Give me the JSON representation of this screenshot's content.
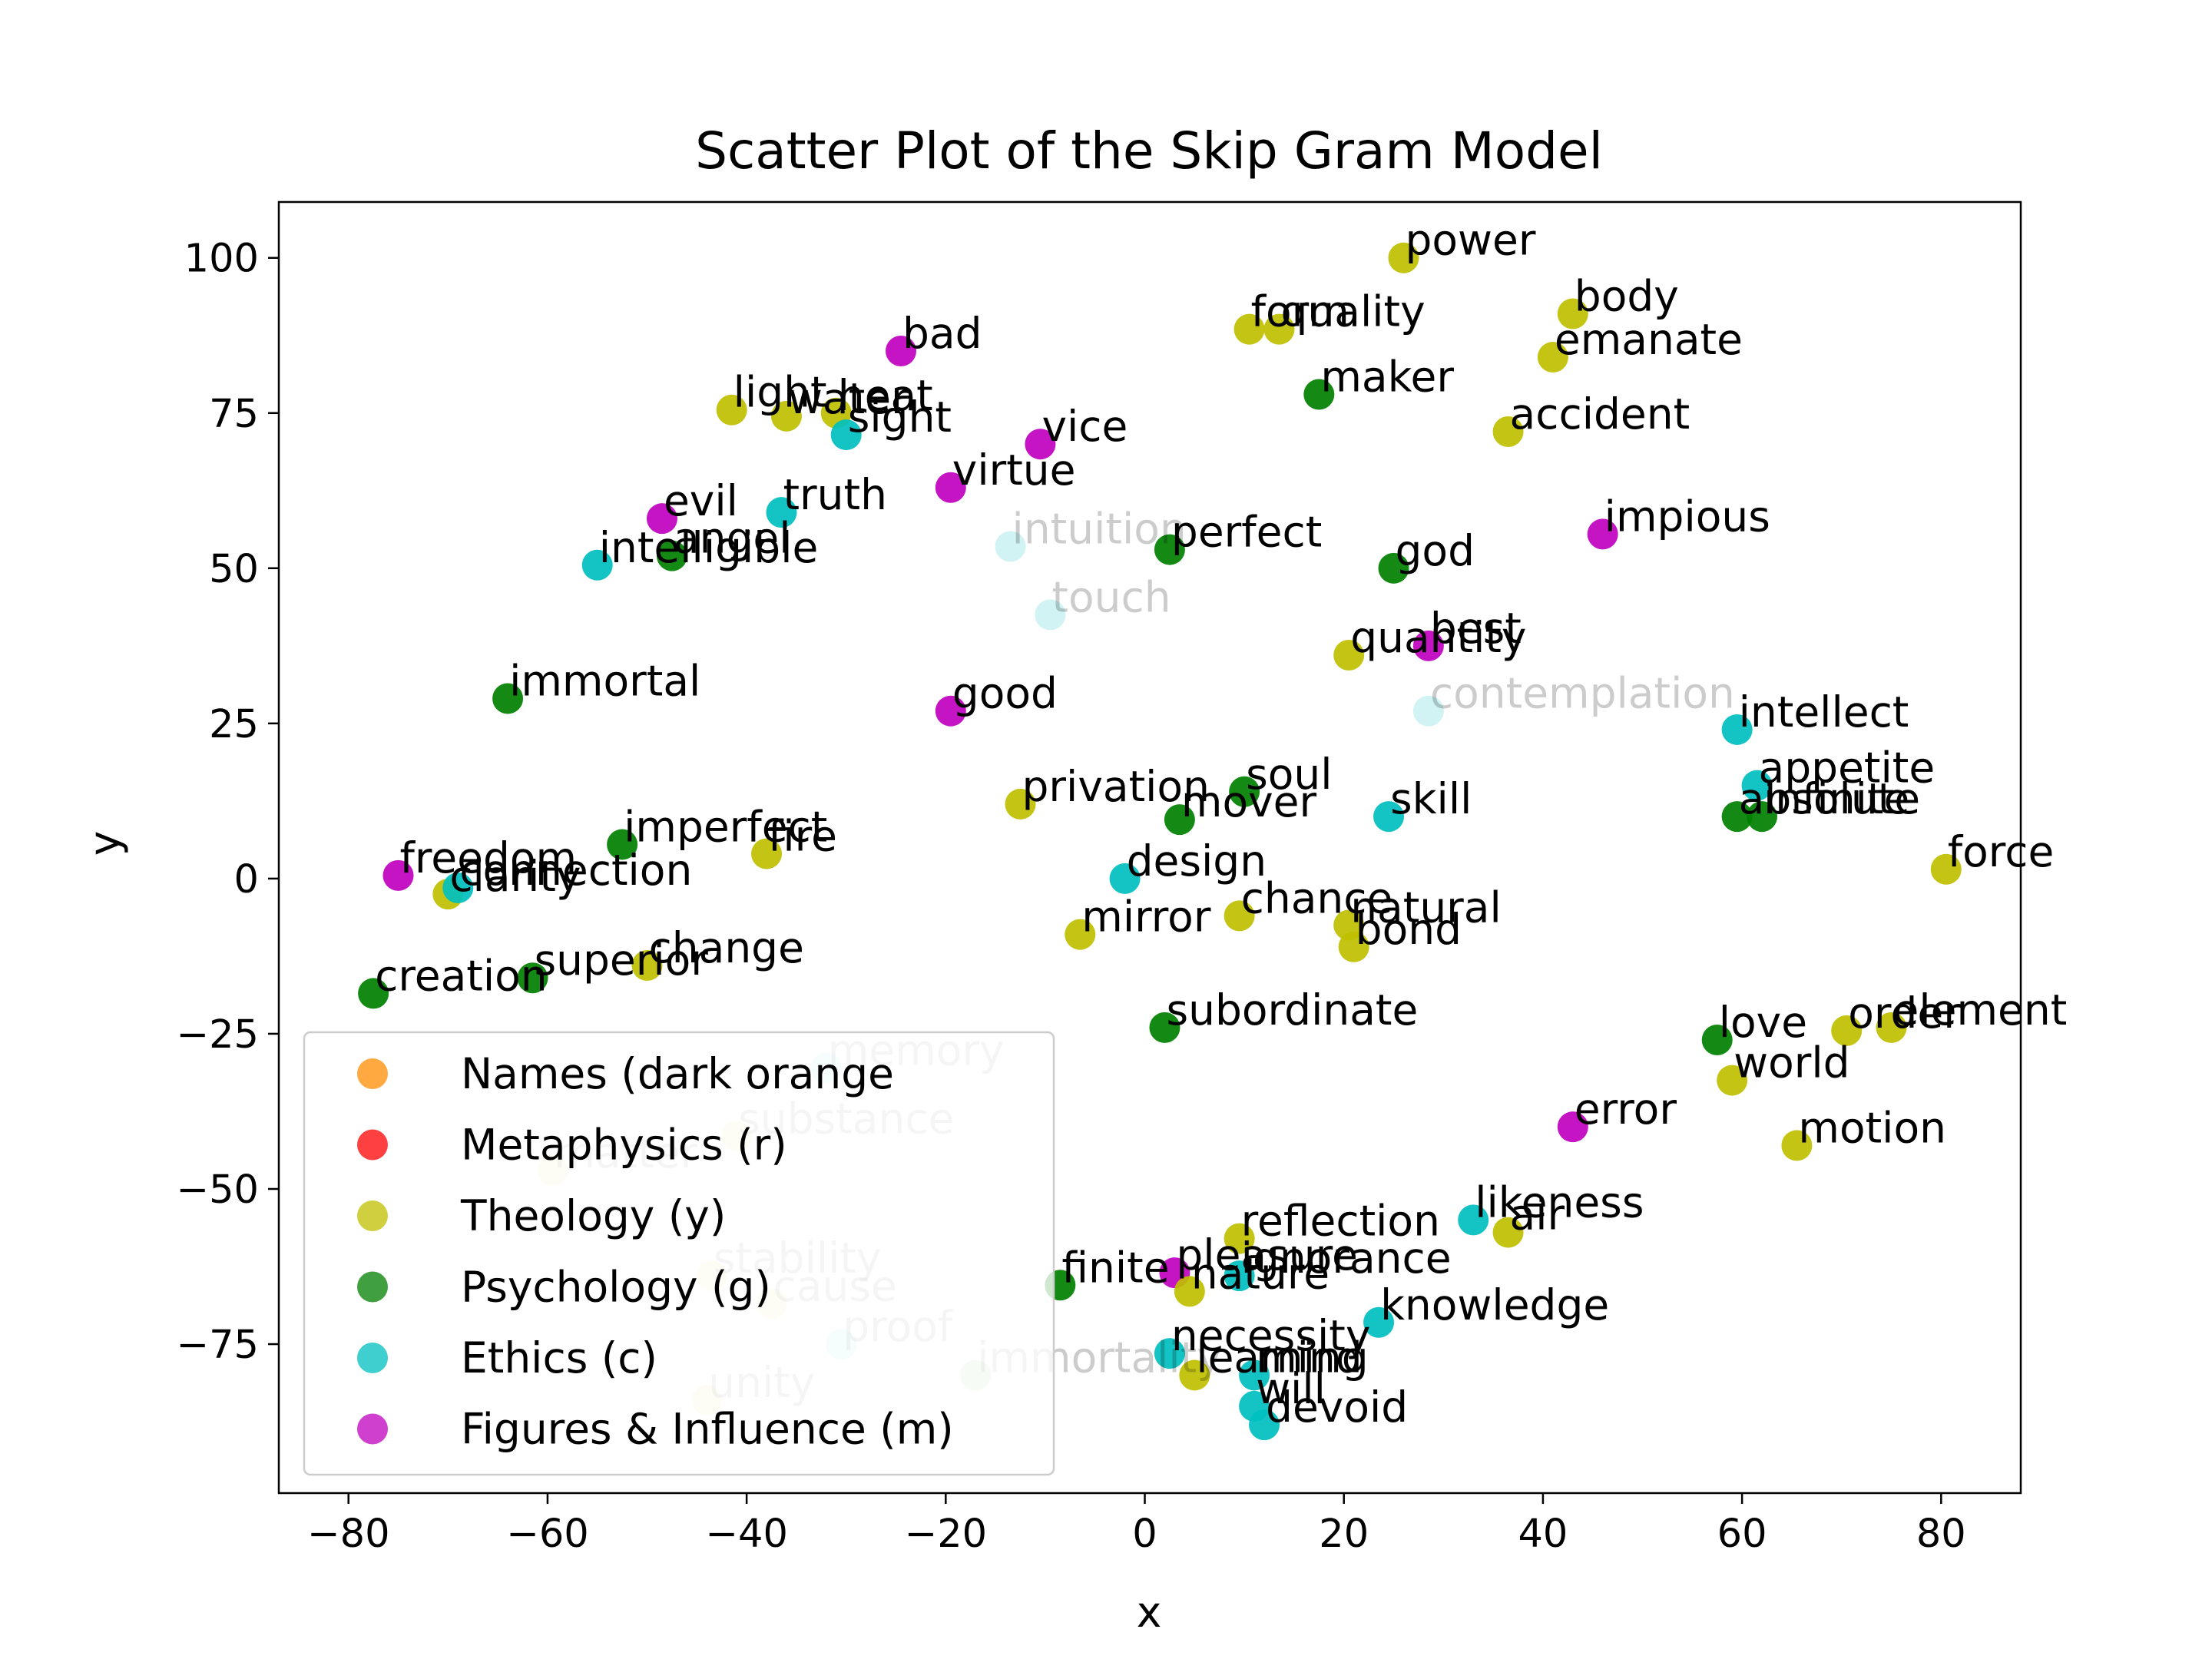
{
  "chart_data": {
    "type": "scatter",
    "title": "Scatter Plot of the Skip Gram Model",
    "xlabel": "x",
    "ylabel": "y",
    "xlim": [
      -87,
      88
    ],
    "ylim": [
      -99,
      109
    ],
    "x_ticks": [
      -80,
      -60,
      -40,
      -20,
      0,
      20,
      40,
      60,
      80
    ],
    "y_ticks": [
      -75,
      -50,
      -25,
      0,
      25,
      50,
      75,
      100
    ],
    "x_tick_labels": [
      "−80",
      "−60",
      "−40",
      "−20",
      "0",
      "20",
      "40",
      "60",
      "80"
    ],
    "y_tick_labels": [
      "−75",
      "−50",
      "−25",
      "0",
      "25",
      "50",
      "75",
      "100"
    ],
    "grid": false,
    "legend_position": "lower-left",
    "legend": [
      {
        "label": "Names (dark orange",
        "color": "#ff8c00"
      },
      {
        "label": "Metaphysics (r)",
        "color": "#ff0000"
      },
      {
        "label": "Theology (y)",
        "color": "#bfbf00"
      },
      {
        "label": "Psychology (g)",
        "color": "#008000"
      },
      {
        "label": "Ethics (c)",
        "color": "#00bfbf"
      },
      {
        "label": "Figures & Influence (m)",
        "color": "#bf00bf"
      }
    ],
    "points": [
      {
        "word": "power",
        "x": 26,
        "y": 100,
        "category": "y"
      },
      {
        "word": "body",
        "x": 43,
        "y": 91,
        "category": "y"
      },
      {
        "word": "emanate",
        "x": 41,
        "y": 84,
        "category": "y"
      },
      {
        "word": "form",
        "x": 10.5,
        "y": 88.5,
        "category": "y"
      },
      {
        "word": "quality",
        "x": 13.5,
        "y": 88.5,
        "category": "y"
      },
      {
        "word": "maker",
        "x": 17.5,
        "y": 78,
        "category": "g"
      },
      {
        "word": "accident",
        "x": 36.5,
        "y": 72,
        "category": "y"
      },
      {
        "word": "bad",
        "x": -24.5,
        "y": 85,
        "category": "m"
      },
      {
        "word": "light",
        "x": -41.5,
        "y": 75.5,
        "category": "y"
      },
      {
        "word": "water",
        "x": -36,
        "y": 74.5,
        "category": "y"
      },
      {
        "word": "heat",
        "x": -31,
        "y": 75,
        "category": "y"
      },
      {
        "word": "sight",
        "x": -30,
        "y": 71.5,
        "category": "c"
      },
      {
        "word": "vice",
        "x": -10.5,
        "y": 70,
        "category": "m"
      },
      {
        "word": "virtue",
        "x": -19.5,
        "y": 63,
        "category": "m"
      },
      {
        "word": "evil",
        "x": -48.5,
        "y": 58,
        "category": "m"
      },
      {
        "word": "truth",
        "x": -36.5,
        "y": 59,
        "category": "c"
      },
      {
        "word": "intelligible",
        "x": -55,
        "y": 50.5,
        "category": "c"
      },
      {
        "word": "angel",
        "x": -47.5,
        "y": 52,
        "category": "g"
      },
      {
        "word": "intuition",
        "x": -13.5,
        "y": 53.5,
        "category": "c",
        "faded": true
      },
      {
        "word": "perfect",
        "x": 2.5,
        "y": 53,
        "category": "g"
      },
      {
        "word": "god",
        "x": 25,
        "y": 50,
        "category": "g"
      },
      {
        "word": "impious",
        "x": 46,
        "y": 55.5,
        "category": "m"
      },
      {
        "word": "touch",
        "x": -9.5,
        "y": 42.5,
        "category": "c",
        "faded": true
      },
      {
        "word": "quantity",
        "x": 20.5,
        "y": 36,
        "category": "y"
      },
      {
        "word": "best",
        "x": 28.5,
        "y": 37.5,
        "category": "m"
      },
      {
        "word": "immortal",
        "x": -64,
        "y": 29,
        "category": "g"
      },
      {
        "word": "good",
        "x": -19.5,
        "y": 27,
        "category": "m"
      },
      {
        "word": "contemplation",
        "x": 28.5,
        "y": 27,
        "category": "c",
        "faded": true
      },
      {
        "word": "intellect",
        "x": 59.5,
        "y": 24,
        "category": "c"
      },
      {
        "word": "appetite",
        "x": 61.5,
        "y": 15,
        "category": "c"
      },
      {
        "word": "absolute",
        "x": 59.5,
        "y": 10,
        "category": "g"
      },
      {
        "word": "infinite",
        "x": 62,
        "y": 10,
        "category": "g"
      },
      {
        "word": "privation",
        "x": -12.5,
        "y": 12,
        "category": "y"
      },
      {
        "word": "soul",
        "x": 10,
        "y": 14,
        "category": "g"
      },
      {
        "word": "mover",
        "x": 3.5,
        "y": 9.5,
        "category": "g"
      },
      {
        "word": "skill",
        "x": 24.5,
        "y": 10,
        "category": "c"
      },
      {
        "word": "force",
        "x": 80.5,
        "y": 1.5,
        "category": "y"
      },
      {
        "word": "imperfect",
        "x": -52.5,
        "y": 5.5,
        "category": "g"
      },
      {
        "word": "fire",
        "x": -38,
        "y": 4,
        "category": "y"
      },
      {
        "word": "freedom",
        "x": -75,
        "y": 0.5,
        "category": "m"
      },
      {
        "word": "clarity",
        "x": -70,
        "y": -2.5,
        "category": "y"
      },
      {
        "word": "connection",
        "x": -69,
        "y": -1.5,
        "category": "c"
      },
      {
        "word": "design",
        "x": -2,
        "y": 0,
        "category": "c"
      },
      {
        "word": "mirror",
        "x": -6.5,
        "y": -9,
        "category": "y"
      },
      {
        "word": "chance",
        "x": 9.5,
        "y": -6,
        "category": "y"
      },
      {
        "word": "natural",
        "x": 20.5,
        "y": -7.5,
        "category": "y"
      },
      {
        "word": "bond",
        "x": 21,
        "y": -11,
        "category": "y"
      },
      {
        "word": "change",
        "x": -50,
        "y": -14,
        "category": "y"
      },
      {
        "word": "superior",
        "x": -61.5,
        "y": -16,
        "category": "g"
      },
      {
        "word": "creation",
        "x": -77.5,
        "y": -18.5,
        "category": "g"
      },
      {
        "word": "subordinate",
        "x": 2,
        "y": -24,
        "category": "g"
      },
      {
        "word": "love",
        "x": 57.5,
        "y": -26,
        "category": "g"
      },
      {
        "word": "order",
        "x": 70.5,
        "y": -24.5,
        "category": "y"
      },
      {
        "word": "element",
        "x": 75,
        "y": -24,
        "category": "y"
      },
      {
        "word": "world",
        "x": 59,
        "y": -32.5,
        "category": "y"
      },
      {
        "word": "memory",
        "x": -32,
        "y": -30.5,
        "category": "c",
        "faded": true
      },
      {
        "word": "substance",
        "x": -41,
        "y": -41.5,
        "category": "y",
        "faded": true
      },
      {
        "word": "matter",
        "x": -59.5,
        "y": -47,
        "category": "y",
        "faded": true
      },
      {
        "word": "error",
        "x": 43,
        "y": -40,
        "category": "m"
      },
      {
        "word": "motion",
        "x": 65.5,
        "y": -43,
        "category": "y"
      },
      {
        "word": "likeness",
        "x": 33,
        "y": -55,
        "category": "c"
      },
      {
        "word": "air",
        "x": 36.5,
        "y": -57,
        "category": "y"
      },
      {
        "word": "reflection",
        "x": 9.5,
        "y": -58,
        "category": "y"
      },
      {
        "word": "finite",
        "x": -8.5,
        "y": -65.5,
        "category": "g"
      },
      {
        "word": "pleasure",
        "x": 3,
        "y": -63.5,
        "category": "m"
      },
      {
        "word": "nature",
        "x": 4.5,
        "y": -66.5,
        "category": "y"
      },
      {
        "word": "ignorance",
        "x": 9.5,
        "y": -64,
        "category": "c"
      },
      {
        "word": "stability",
        "x": -43.5,
        "y": -64,
        "category": "y",
        "faded": true
      },
      {
        "word": "cause",
        "x": -37.5,
        "y": -68.5,
        "category": "y",
        "faded": true
      },
      {
        "word": "knowledge",
        "x": 23.5,
        "y": -71.5,
        "category": "c"
      },
      {
        "word": "proof",
        "x": -30.5,
        "y": -75,
        "category": "c",
        "faded": true
      },
      {
        "word": "necessity",
        "x": 2.5,
        "y": -76.5,
        "category": "c"
      },
      {
        "word": "mind",
        "x": 11,
        "y": -80,
        "category": "c"
      },
      {
        "word": "immortality",
        "x": -17,
        "y": -80,
        "category": "g",
        "faded": true
      },
      {
        "word": "learning",
        "x": 5,
        "y": -80,
        "category": "y"
      },
      {
        "word": "unity",
        "x": -44,
        "y": -84,
        "category": "y",
        "faded": true
      },
      {
        "word": "will",
        "x": 11,
        "y": -85,
        "category": "c"
      },
      {
        "word": "devoid",
        "x": 12,
        "y": -88,
        "category": "c"
      }
    ]
  }
}
